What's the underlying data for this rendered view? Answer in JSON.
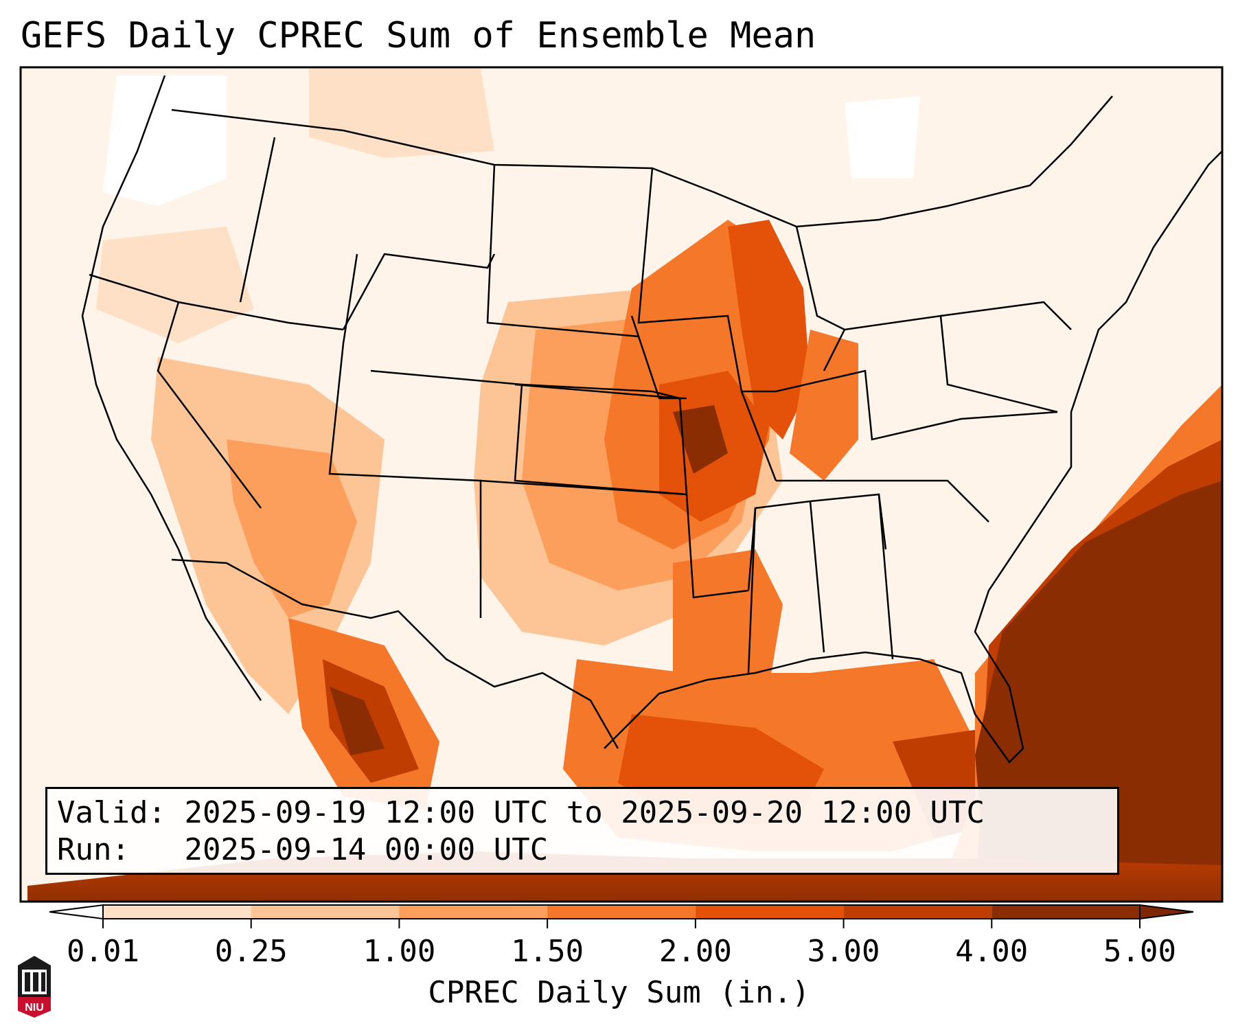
{
  "title": "GEFS Daily CPREC Sum of Ensemble Mean",
  "info": {
    "valid_label": "Valid:",
    "valid_value": "2025-09-19 12:00 UTC to 2025-09-20 12:00 UTC",
    "run_label": "Run:",
    "run_value": "2025-09-14 00:00 UTC"
  },
  "colorbar": {
    "label": "CPREC Daily Sum (in.)",
    "ticks": [
      "0.01",
      "0.25",
      "1.00",
      "1.50",
      "2.00",
      "3.00",
      "4.00",
      "5.00"
    ],
    "colors": [
      "#fff4ea",
      "#fee0c6",
      "#fdc596",
      "#fd9f5c",
      "#f5782a",
      "#e35208",
      "#c03d02",
      "#8b2d03"
    ],
    "under_color": "#ffffff",
    "over_color": "#7f2704"
  },
  "map": {
    "projection": "Lambert conformal, CONUS",
    "palette": {
      "ocean_max": "#8b2d03",
      "border": "#000000"
    }
  },
  "logo": {
    "text": "NIU",
    "icon": "niu-tower-logo-icon"
  }
}
